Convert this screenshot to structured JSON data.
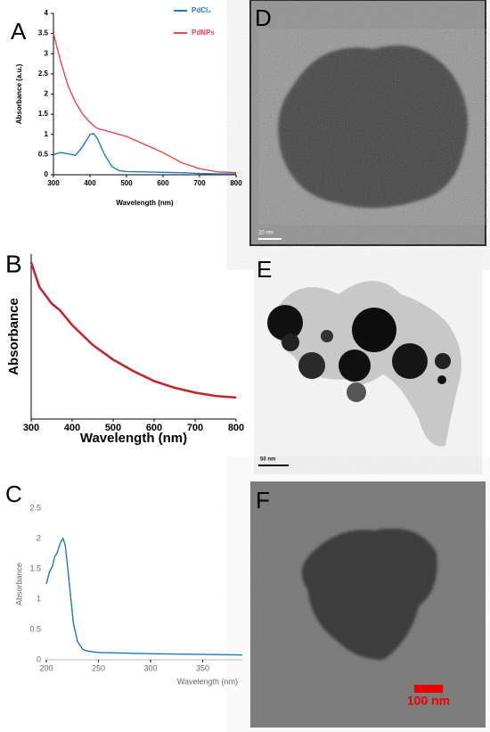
{
  "chart_data": [
    {
      "type": "line",
      "panel": "A",
      "xlabel": "Wavelength (nm)",
      "ylabel": "Absorbance (a.u.)",
      "x": [
        300,
        320,
        340,
        360,
        380,
        400,
        410,
        420,
        440,
        460,
        480,
        500,
        550,
        600,
        650,
        700,
        750,
        800
      ],
      "series": [
        {
          "name": "PdCl₂",
          "color": "#1f7bbf",
          "values": [
            0.5,
            0.55,
            0.52,
            0.48,
            0.7,
            1.0,
            1.02,
            0.9,
            0.5,
            0.2,
            0.1,
            0.08,
            0.07,
            0.06,
            0.05,
            0.03,
            0.02,
            0.02
          ]
        },
        {
          "name": "PdNPs",
          "color": "#e8474a",
          "values": [
            3.5,
            2.8,
            2.2,
            1.8,
            1.5,
            1.3,
            1.22,
            1.15,
            1.1,
            1.05,
            1.0,
            0.95,
            0.75,
            0.55,
            0.3,
            0.15,
            0.07,
            0.05
          ]
        }
      ],
      "xlim": [
        300,
        800
      ],
      "xticks": [
        300,
        400,
        500,
        600,
        700,
        800
      ],
      "ylim": [
        0,
        4
      ],
      "yticks": [
        0,
        0.5,
        1,
        1.5,
        2,
        2.5,
        3,
        3.5,
        4
      ],
      "legend": "top-right"
    },
    {
      "type": "line",
      "panel": "B",
      "xlabel": "Wavelength (nm)",
      "ylabel": "Absorbance",
      "color": "#c0252a",
      "x": [
        300,
        320,
        350,
        370,
        400,
        450,
        500,
        550,
        600,
        650,
        700,
        750,
        800
      ],
      "values": [
        0.95,
        0.8,
        0.7,
        0.66,
        0.57,
        0.45,
        0.36,
        0.29,
        0.23,
        0.19,
        0.16,
        0.14,
        0.13
      ],
      "xlim": [
        300,
        800
      ],
      "xticks": [
        300,
        400,
        500,
        600,
        700,
        800
      ],
      "ylim": [
        0,
        1
      ]
    },
    {
      "type": "line",
      "panel": "C",
      "xlabel": "Wavelength (nm)",
      "ylabel": "Absorbance",
      "color": "#1f77b4",
      "x": [
        200,
        203,
        206,
        208,
        210,
        212,
        214,
        216,
        218,
        220,
        223,
        226,
        230,
        235,
        240,
        250,
        300,
        350,
        388
      ],
      "values": [
        1.25,
        1.45,
        1.55,
        1.7,
        1.75,
        1.85,
        1.95,
        2.0,
        1.9,
        1.6,
        1.1,
        0.6,
        0.3,
        0.17,
        0.14,
        0.12,
        0.1,
        0.09,
        0.08
      ],
      "xlim": [
        200,
        388
      ],
      "xticks": [
        200,
        250,
        300,
        350
      ],
      "ylim": [
        0,
        2.5
      ],
      "yticks": [
        0,
        0.5,
        1,
        1.5,
        2,
        2.5
      ]
    }
  ],
  "images": [
    {
      "panel": "D",
      "scale_bar": "20 nm"
    },
    {
      "panel": "E",
      "scale_bar": "50 nm"
    },
    {
      "panel": "F",
      "scale_bar": "100 nm"
    }
  ]
}
